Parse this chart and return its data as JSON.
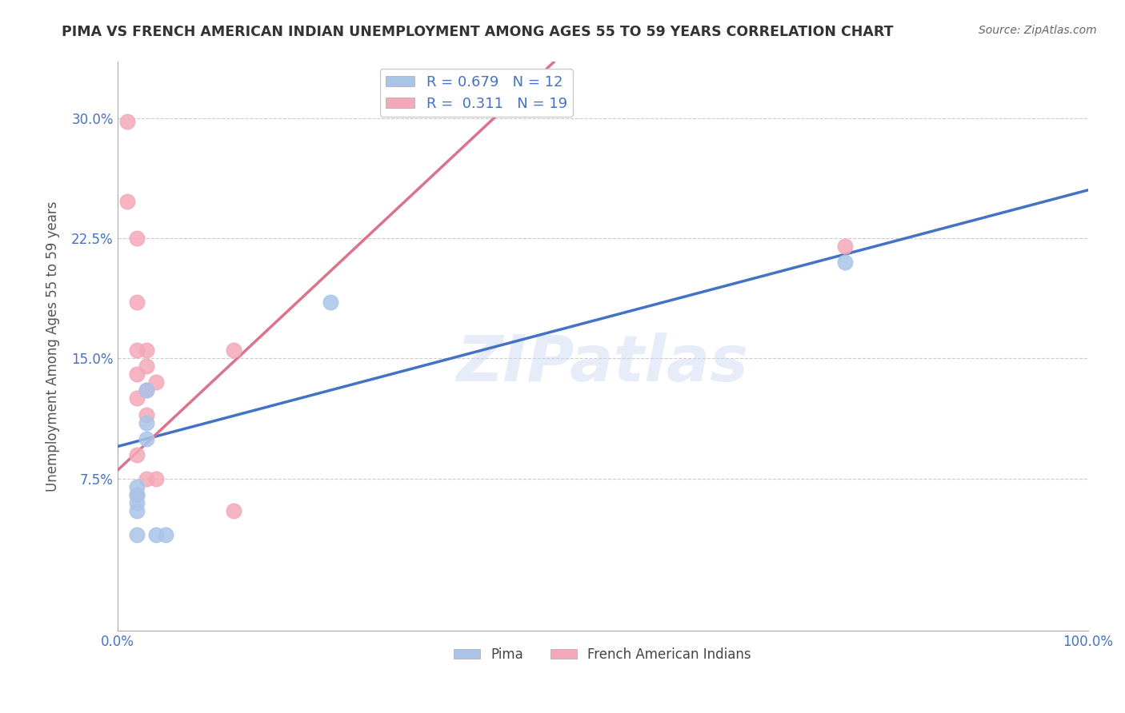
{
  "title": "PIMA VS FRENCH AMERICAN INDIAN UNEMPLOYMENT AMONG AGES 55 TO 59 YEARS CORRELATION CHART",
  "source": "Source: ZipAtlas.com",
  "ylabel": "Unemployment Among Ages 55 to 59 years",
  "xlabel": "",
  "xlim": [
    0.0,
    1.0
  ],
  "ylim": [
    -0.02,
    0.335
  ],
  "yticks": [
    0.075,
    0.15,
    0.225,
    0.3
  ],
  "ytick_labels": [
    "7.5%",
    "15.0%",
    "22.5%",
    "30.0%"
  ],
  "xticks": [
    0.0,
    0.25,
    0.5,
    0.75,
    1.0
  ],
  "xtick_labels": [
    "0.0%",
    "",
    "",
    "",
    "100.0%"
  ],
  "pima_x": [
    0.02,
    0.02,
    0.02,
    0.02,
    0.02,
    0.03,
    0.03,
    0.03,
    0.04,
    0.05,
    0.22,
    0.75
  ],
  "pima_y": [
    0.07,
    0.065,
    0.06,
    0.055,
    0.04,
    0.13,
    0.11,
    0.1,
    0.04,
    0.04,
    0.185,
    0.21
  ],
  "french_x": [
    0.01,
    0.01,
    0.02,
    0.02,
    0.02,
    0.02,
    0.02,
    0.02,
    0.02,
    0.03,
    0.03,
    0.03,
    0.03,
    0.03,
    0.04,
    0.04,
    0.12,
    0.12,
    0.75
  ],
  "french_y": [
    0.298,
    0.248,
    0.225,
    0.185,
    0.155,
    0.14,
    0.125,
    0.09,
    0.065,
    0.155,
    0.145,
    0.13,
    0.115,
    0.075,
    0.135,
    0.075,
    0.155,
    0.055,
    0.22
  ],
  "pima_color": "#aac4e8",
  "french_color": "#f4a8b8",
  "pima_line_color": "#4472c4",
  "french_line_color": "#d9748a",
  "pima_R": 0.679,
  "pima_N": 12,
  "french_R": 0.311,
  "french_N": 19,
  "legend_label_pima": "Pima",
  "legend_label_french": "French American Indians",
  "watermark": "ZIPatlas",
  "background_color": "#ffffff",
  "title_color": "#333333",
  "axis_label_color": "#555555",
  "tick_color": "#4472c4",
  "source_color": "#666666",
  "grid_color": "#cccccc",
  "figsize": [
    14.06,
    8.92
  ],
  "dpi": 100,
  "pima_line_start_x": 0.0,
  "pima_line_start_y": 0.095,
  "pima_line_end_x": 1.0,
  "pima_line_end_y": 0.255,
  "french_line_start_x": 0.0,
  "french_line_start_y": 0.08,
  "french_line_end_x": 0.45,
  "french_line_end_y": 0.335
}
